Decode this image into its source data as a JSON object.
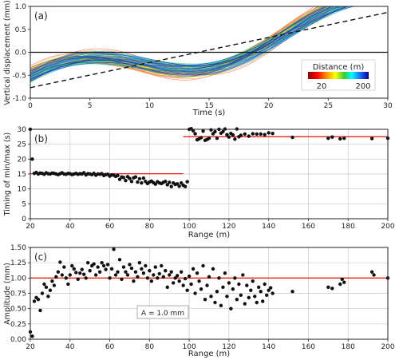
{
  "colors": {
    "line_red": "#e8251c",
    "dash": "#111111",
    "point": "#111111",
    "grid": "#c8c8c8"
  },
  "chart_data": [
    {
      "type": "line",
      "panel_label": "(a)",
      "xlabel": "Time (s)",
      "ylabel": "Vertical displacement (mm)",
      "xlim": [
        0,
        30
      ],
      "ylim": [
        -1.0,
        1.0
      ],
      "xticks": [
        "0",
        "5",
        "10",
        "15",
        "20",
        "25",
        "30"
      ],
      "yticks": [
        "-1.0",
        "-0.5",
        "0.0",
        "0.5",
        "1.0"
      ],
      "x_tick_values": [
        0,
        5,
        10,
        15,
        20,
        25,
        30
      ],
      "y_tick_values": [
        -1.0,
        -0.5,
        0.0,
        0.5,
        1.0
      ],
      "zero_line": 0,
      "trend_line": {
        "style": "dashed",
        "x": [
          0,
          30
        ],
        "y": [
          -0.77,
          0.87
        ]
      },
      "colorbar": {
        "title": "Distance (m)",
        "min_label": "20",
        "max_label": "200",
        "min": 20,
        "max": 200,
        "colormap": "jet_r"
      },
      "curve_model": {
        "description_units": "amplitude mm, timing s, distance m",
        "distances": [
          20,
          40,
          60,
          80,
          100,
          120,
          140,
          160,
          180,
          200
        ],
        "period_s": 24,
        "trend_slope": 0.0547,
        "trend_intercept": -0.77
      }
    },
    {
      "type": "scatter",
      "panel_label": "(b)",
      "xlabel": "Range (m)",
      "ylabel": "Timing of min/max (s)",
      "xlim": [
        20,
        200
      ],
      "ylim": [
        0,
        30
      ],
      "xticks": [
        "20",
        "40",
        "60",
        "80",
        "100",
        "120",
        "140",
        "160",
        "180",
        "200"
      ],
      "yticks": [
        "0",
        "5",
        "10",
        "15",
        "20",
        "25",
        "30"
      ],
      "x_tick_values": [
        20,
        40,
        60,
        80,
        100,
        120,
        140,
        160,
        180,
        200
      ],
      "y_tick_values": [
        0,
        5,
        10,
        15,
        20,
        25,
        30
      ],
      "grid": true,
      "fit_segments": [
        {
          "x": [
            20,
            97
          ],
          "y": [
            15.1,
            15.1
          ]
        },
        {
          "x": [
            97,
            200
          ],
          "y": [
            27.5,
            27.5
          ]
        }
      ],
      "points": {
        "x": [
          20,
          21,
          22,
          23,
          24,
          25,
          26,
          27,
          28,
          29,
          30,
          31,
          32,
          33,
          34,
          35,
          36,
          37,
          38,
          39,
          40,
          41,
          42,
          43,
          44,
          45,
          46,
          47,
          48,
          49,
          50,
          51,
          52,
          53,
          54,
          55,
          56,
          57,
          58,
          59,
          60,
          61,
          62,
          63,
          64,
          65,
          66,
          67,
          68,
          69,
          70,
          71,
          72,
          73,
          74,
          75,
          76,
          77,
          78,
          79,
          80,
          81,
          82,
          83,
          84,
          85,
          86,
          87,
          88,
          89,
          90,
          91,
          92,
          93,
          94,
          95,
          96,
          97,
          98,
          99,
          100,
          101,
          102,
          103,
          104,
          105,
          106,
          107,
          108,
          109,
          110,
          111,
          112,
          113,
          114,
          115,
          116,
          117,
          118,
          119,
          120,
          121,
          122,
          123,
          124,
          125,
          126,
          128,
          130,
          132,
          134,
          136,
          138,
          140,
          142,
          152,
          170,
          172,
          176,
          178,
          192,
          200
        ],
        "y": [
          30.0,
          20.0,
          15.2,
          15.5,
          15.0,
          15.3,
          15.2,
          14.9,
          15.4,
          15.1,
          15.0,
          15.3,
          15.2,
          15.0,
          14.8,
          15.1,
          15.4,
          15.0,
          14.9,
          15.2,
          15.1,
          14.8,
          15.0,
          15.2,
          14.9,
          15.1,
          15.0,
          15.4,
          14.7,
          15.1,
          15.0,
          14.8,
          15.2,
          14.6,
          15.0,
          14.9,
          15.1,
          14.5,
          14.8,
          14.9,
          14.3,
          14.7,
          14.6,
          14.2,
          14.5,
          13.2,
          14.0,
          13.8,
          12.8,
          14.1,
          13.5,
          12.5,
          13.7,
          14.0,
          12.3,
          13.4,
          12.0,
          13.6,
          12.5,
          11.8,
          12.3,
          12.6,
          12.1,
          11.6,
          12.4,
          12.0,
          11.8,
          12.2,
          12.5,
          11.4,
          12.2,
          10.8,
          12.0,
          11.5,
          11.7,
          10.9,
          12.0,
          11.2,
          10.8,
          12.4,
          30.0,
          30.2,
          29.5,
          28.5,
          26.5,
          26.8,
          27.2,
          29.4,
          26.3,
          26.6,
          27.0,
          29.8,
          28.5,
          29.2,
          27.0,
          30.0,
          28.7,
          29.2,
          30.1,
          28.2,
          27.4,
          28.6,
          28.1,
          26.7,
          30.1,
          27.5,
          28.0,
          28.4,
          27.7,
          28.5,
          28.4,
          28.4,
          28.2,
          28.8,
          28.6,
          27.3,
          27.0,
          27.4,
          26.8,
          27.0,
          26.9,
          27.0
        ]
      }
    },
    {
      "type": "scatter",
      "panel_label": "(c)",
      "xlabel": "Range (m)",
      "ylabel": "Amplitude (mm)",
      "xlim": [
        20,
        200
      ],
      "ylim": [
        0,
        1.5
      ],
      "xticks": [
        "20",
        "40",
        "60",
        "80",
        "100",
        "120",
        "140",
        "160",
        "180",
        "200"
      ],
      "yticks": [
        "0.00",
        "0.25",
        "0.50",
        "0.75",
        "1.00",
        "1.25",
        "1.50"
      ],
      "x_tick_values": [
        20,
        40,
        60,
        80,
        100,
        120,
        140,
        160,
        180,
        200
      ],
      "y_tick_values": [
        0,
        0.25,
        0.5,
        0.75,
        1.0,
        1.25,
        1.5
      ],
      "grid": true,
      "reference_line": {
        "y": 1.0
      },
      "annotation": "A = 1.0 mm",
      "points": {
        "x": [
          20,
          21,
          22,
          23,
          24,
          25,
          26,
          27,
          28,
          29,
          30,
          31,
          32,
          33,
          34,
          35,
          36,
          37,
          38,
          39,
          40,
          41,
          42,
          43,
          44,
          45,
          46,
          47,
          48,
          49,
          50,
          51,
          52,
          53,
          54,
          55,
          56,
          57,
          58,
          59,
          60,
          61,
          62,
          63,
          64,
          65,
          66,
          67,
          68,
          69,
          70,
          71,
          72,
          73,
          74,
          75,
          76,
          77,
          78,
          79,
          80,
          81,
          82,
          83,
          84,
          85,
          86,
          87,
          88,
          89,
          90,
          91,
          92,
          93,
          94,
          95,
          96,
          97,
          98,
          99,
          100,
          101,
          102,
          103,
          104,
          105,
          106,
          107,
          108,
          109,
          110,
          111,
          112,
          113,
          114,
          115,
          116,
          117,
          118,
          119,
          120,
          121,
          122,
          123,
          124,
          125,
          126,
          127,
          128,
          129,
          130,
          131,
          132,
          133,
          134,
          135,
          136,
          137,
          138,
          139,
          140,
          141,
          142,
          152,
          170,
          172,
          176,
          177,
          178,
          192,
          193,
          200
        ],
        "y": [
          0.12,
          0.05,
          0.62,
          0.68,
          0.65,
          0.47,
          0.75,
          0.9,
          0.85,
          0.7,
          0.8,
          0.95,
          0.88,
          1.02,
          1.1,
          1.26,
          1.05,
          1.18,
          1.0,
          0.9,
          1.05,
          1.2,
          1.15,
          1.09,
          0.98,
          1.08,
          1.14,
          1.06,
          1.0,
          1.25,
          1.12,
          1.2,
          1.23,
          1.05,
          1.18,
          1.1,
          1.25,
          1.2,
          1.14,
          1.22,
          1.0,
          1.15,
          1.47,
          1.05,
          1.1,
          1.3,
          0.98,
          1.18,
          1.1,
          1.05,
          1.22,
          1.16,
          0.95,
          1.1,
          1.02,
          1.25,
          1.15,
          1.08,
          1.2,
          1.0,
          1.12,
          0.95,
          1.05,
          1.18,
          1.0,
          1.07,
          1.2,
          1.02,
          1.12,
          0.85,
          1.05,
          1.1,
          0.92,
          1.0,
          1.04,
          0.95,
          1.1,
          0.88,
          0.99,
          0.8,
          1.03,
          0.9,
          1.15,
          0.75,
          1.08,
          0.95,
          0.82,
          1.2,
          0.65,
          0.88,
          1.02,
          0.7,
          1.15,
          0.6,
          0.78,
          1.0,
          0.55,
          0.85,
          1.08,
          0.7,
          0.92,
          0.5,
          0.82,
          1.0,
          0.65,
          0.9,
          0.72,
          1.05,
          0.58,
          0.88,
          0.68,
          0.8,
          0.95,
          0.7,
          0.6,
          0.85,
          0.78,
          0.62,
          0.9,
          0.72,
          0.8,
          0.84,
          0.75,
          0.78,
          0.85,
          0.83,
          0.9,
          0.98,
          0.93,
          1.1,
          1.05,
          1.0
        ]
      }
    }
  ]
}
